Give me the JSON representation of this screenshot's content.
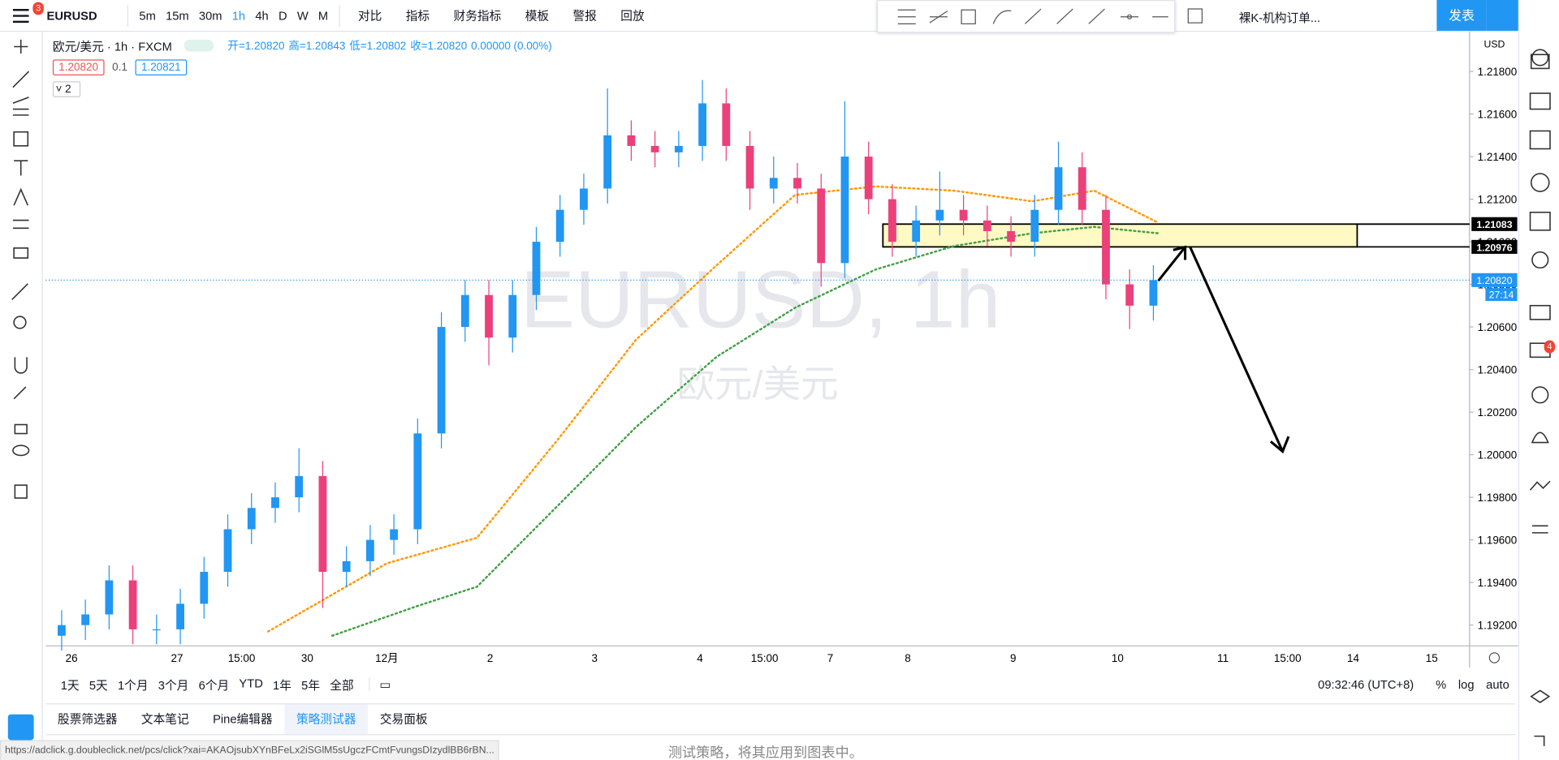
{
  "toolbar": {
    "symbol": "EURUSD",
    "menu_badge": "3",
    "intervals": [
      "5m",
      "15m",
      "30m",
      "1h",
      "4h",
      "D",
      "W",
      "M"
    ],
    "buttons": [
      "对比",
      "指标",
      "财务指标",
      "模板",
      "警报",
      "回放"
    ],
    "layout_name": "裸K-机构订单...",
    "publish": "发表"
  },
  "legend": {
    "title": "欧元/美元 · 1h · FXCM",
    "ohlc": [
      "开=1.20820",
      "高=1.20843",
      "低=1.20802",
      "收=1.20820",
      "0.00000 (0.00%)"
    ],
    "bid": "1.20820",
    "spread": "0.1",
    "ask": "1.20821",
    "indicators_count": "2"
  },
  "watermark": {
    "symbol": "EURUSD, 1h",
    "name": "欧元/美元"
  },
  "chart_data": {
    "type": "candlestick",
    "currency": "USD",
    "up_color": "#2196f3",
    "down_color": "#ec407a",
    "grid": false,
    "x_labels": [
      "26",
      "27",
      "15:00",
      "30",
      "12月",
      "2",
      "3",
      "4",
      "15:00",
      "7",
      "8",
      "9",
      "10",
      "11",
      "15:00",
      "14",
      "15"
    ],
    "open": [
      1.1915,
      1.192,
      1.1925,
      1.1941,
      1.1918,
      1.1918,
      1.193,
      1.1945,
      1.1965,
      1.1975,
      1.198,
      1.199,
      1.1945,
      1.195,
      1.196,
      1.1965,
      1.201,
      1.206,
      1.2075,
      1.2055,
      1.2075,
      1.21,
      1.2115,
      1.2125,
      1.215,
      1.2145,
      1.2142,
      1.2145,
      1.2165,
      1.2145,
      1.2125,
      1.213,
      1.2125,
      1.209,
      1.214,
      1.212,
      1.21,
      1.211,
      1.2115,
      1.211,
      1.2105,
      1.21,
      1.2115,
      1.2135,
      1.2115,
      1.208,
      1.207
    ],
    "high": [
      1.1927,
      1.1932,
      1.1948,
      1.1948,
      1.1925,
      1.1937,
      1.1952,
      1.1972,
      1.1982,
      1.1987,
      1.2003,
      1.1997,
      1.1957,
      1.1967,
      1.1972,
      1.2017,
      1.2067,
      1.2082,
      1.2082,
      1.2082,
      1.2107,
      1.2122,
      1.2132,
      1.2172,
      1.2157,
      1.2152,
      1.2152,
      1.2176,
      1.2172,
      1.2152,
      1.214,
      1.2137,
      1.2132,
      1.2166,
      1.2147,
      1.2127,
      1.2117,
      1.2133,
      1.2122,
      1.2117,
      1.2112,
      1.2122,
      1.2147,
      1.2142,
      1.2122,
      1.2087,
      1.2089
    ],
    "low": [
      1.1908,
      1.1913,
      1.1918,
      1.1911,
      1.1911,
      1.1911,
      1.1923,
      1.1938,
      1.1958,
      1.1968,
      1.1973,
      1.1928,
      1.1938,
      1.1943,
      1.1953,
      1.1958,
      1.2003,
      1.2053,
      1.2042,
      1.2048,
      1.2068,
      1.2093,
      1.2108,
      1.2118,
      1.2138,
      1.2135,
      1.2135,
      1.2138,
      1.2138,
      1.2115,
      1.2118,
      1.2118,
      1.2079,
      1.2083,
      1.2113,
      1.2093,
      1.2093,
      1.2103,
      1.2103,
      1.2098,
      1.2093,
      1.2093,
      1.2108,
      1.2108,
      1.2073,
      1.2059,
      1.2063
    ],
    "close": [
      1.192,
      1.1925,
      1.1941,
      1.1918,
      1.1918,
      1.193,
      1.1945,
      1.1965,
      1.1975,
      1.198,
      1.199,
      1.1945,
      1.195,
      1.196,
      1.1965,
      1.201,
      1.206,
      1.2075,
      1.2055,
      1.2075,
      1.21,
      1.2115,
      1.2125,
      1.215,
      1.2145,
      1.2142,
      1.2145,
      1.2165,
      1.2145,
      1.2125,
      1.213,
      1.2125,
      1.209,
      1.214,
      1.212,
      1.21,
      1.211,
      1.2115,
      1.211,
      1.2105,
      1.21,
      1.2115,
      1.2135,
      1.2115,
      1.208,
      1.207,
      1.2082
    ],
    "series": [
      {
        "color": "#ff9800",
        "x": [
          8.7,
          13.7,
          17.5,
          20.9,
          24.2,
          27.6,
          30.9,
          34.3,
          37.6,
          40.9,
          43.5,
          46.2
        ],
        "values": [
          1.1917,
          1.1949,
          1.1961,
          1.2007,
          1.2054,
          1.2089,
          1.2122,
          1.2126,
          1.2124,
          1.2119,
          1.2124,
          1.2109
        ]
      },
      {
        "color": "#43a047",
        "x": [
          11.4,
          15,
          17.5,
          20.9,
          24.2,
          27.6,
          30.9,
          34.3,
          37.6,
          40.9,
          43.5,
          46.2
        ],
        "values": [
          1.1915,
          1.1929,
          1.1938,
          1.1976,
          1.2013,
          1.2046,
          1.2069,
          1.2087,
          1.2098,
          1.2104,
          1.2107,
          1.2104
        ]
      }
    ],
    "ylim": [
      1.191,
      1.2199
    ],
    "yticks": [
      {
        "value": 1.192,
        "label": "1.19200"
      },
      {
        "value": 1.194,
        "label": "1.19400"
      },
      {
        "value": 1.196,
        "label": "1.19600"
      },
      {
        "value": 1.198,
        "label": "1.19800"
      },
      {
        "value": 1.2,
        "label": "1.20000"
      },
      {
        "value": 1.202,
        "label": "1.20200"
      },
      {
        "value": 1.204,
        "label": "1.20400"
      },
      {
        "value": 1.206,
        "label": "1.20600"
      },
      {
        "value": 1.208,
        "label": "1.20800"
      },
      {
        "value": 1.21,
        "label": "1.21000"
      },
      {
        "value": 1.212,
        "label": "1.21200"
      },
      {
        "value": 1.214,
        "label": "1.21400"
      },
      {
        "value": 1.216,
        "label": "1.21600"
      },
      {
        "value": 1.218,
        "label": "1.21800"
      }
    ],
    "zone_labels": [
      {
        "value": 1.21083,
        "label": "1.21083"
      },
      {
        "value": 1.20976,
        "label": "1.20976"
      }
    ],
    "price_label": {
      "value": 1.2082,
      "label": "1.20820"
    },
    "countdown": "27:14"
  },
  "bottom_bar": {
    "ranges": [
      "1天",
      "5天",
      "1个月",
      "3个月",
      "6个月",
      "YTD",
      "1年",
      "5年",
      "全部"
    ],
    "time": "09:32:46 (UTC+8)",
    "scale_options": [
      "%",
      "log",
      "auto"
    ]
  },
  "panel_tabs": [
    "股票筛选器",
    "文本笔记",
    "Pine编辑器",
    "策略测试器",
    "交易面板"
  ],
  "panel_message": "测试策略，将其应用到图表中。",
  "status_url": "https://adclick.g.doubleclick.net/pcs/click?xai=AKAOjsubXYnBFeLx2iSGlM5sUgczFCmtFvungsDIzydlBB6rBN...",
  "sidebar_badge": "4"
}
